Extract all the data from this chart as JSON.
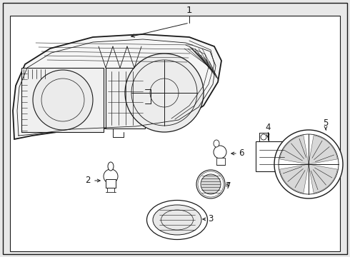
{
  "bg_color": "#e8e8e8",
  "white": "#ffffff",
  "line_color": "#1a1a1a",
  "border_lw": 1.2,
  "label_fontsize": 8.5
}
